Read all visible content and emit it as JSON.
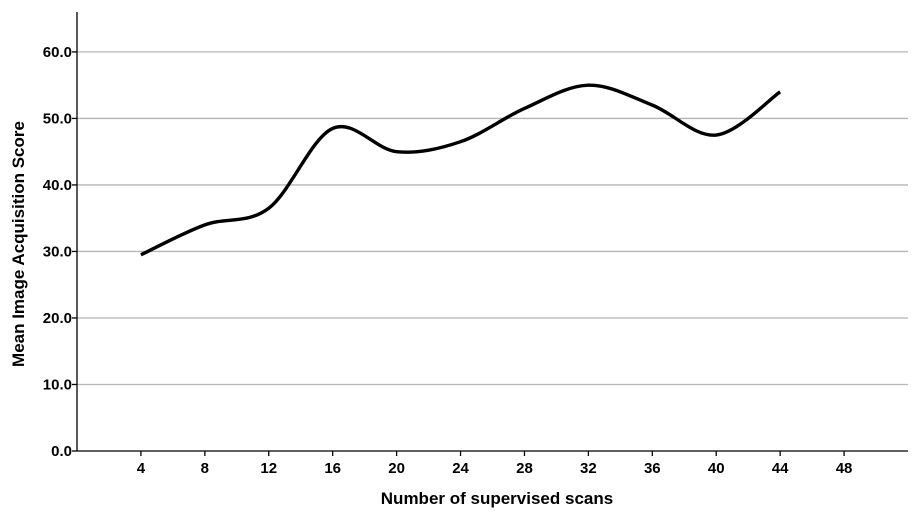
{
  "chart_data": {
    "type": "line",
    "xlabel": "Number of supervised scans",
    "ylabel": "Mean Image Acquisition Score",
    "xlim": [
      0,
      52
    ],
    "ylim": [
      0,
      66
    ],
    "x_ticks": [
      "4",
      "8",
      "12",
      "16",
      "20",
      "24",
      "28",
      "32",
      "36",
      "40",
      "44",
      "48"
    ],
    "x_tick_values": [
      4,
      8,
      12,
      16,
      20,
      24,
      28,
      32,
      36,
      40,
      44,
      48
    ],
    "y_ticks": [
      "0.0",
      "10.0",
      "20.0",
      "30.0",
      "40.0",
      "50.0",
      "60.0"
    ],
    "y_tick_values": [
      0,
      10,
      20,
      30,
      40,
      50,
      60
    ],
    "grid": "horizontal",
    "series": [
      {
        "color": "#000000",
        "x": [
          4,
          8,
          12,
          16,
          20,
          24,
          28,
          32,
          36,
          40,
          44
        ],
        "y": [
          29.5,
          34.0,
          36.5,
          48.5,
          45.0,
          46.5,
          51.5,
          55.0,
          52.0,
          47.5,
          54.0
        ]
      }
    ]
  }
}
